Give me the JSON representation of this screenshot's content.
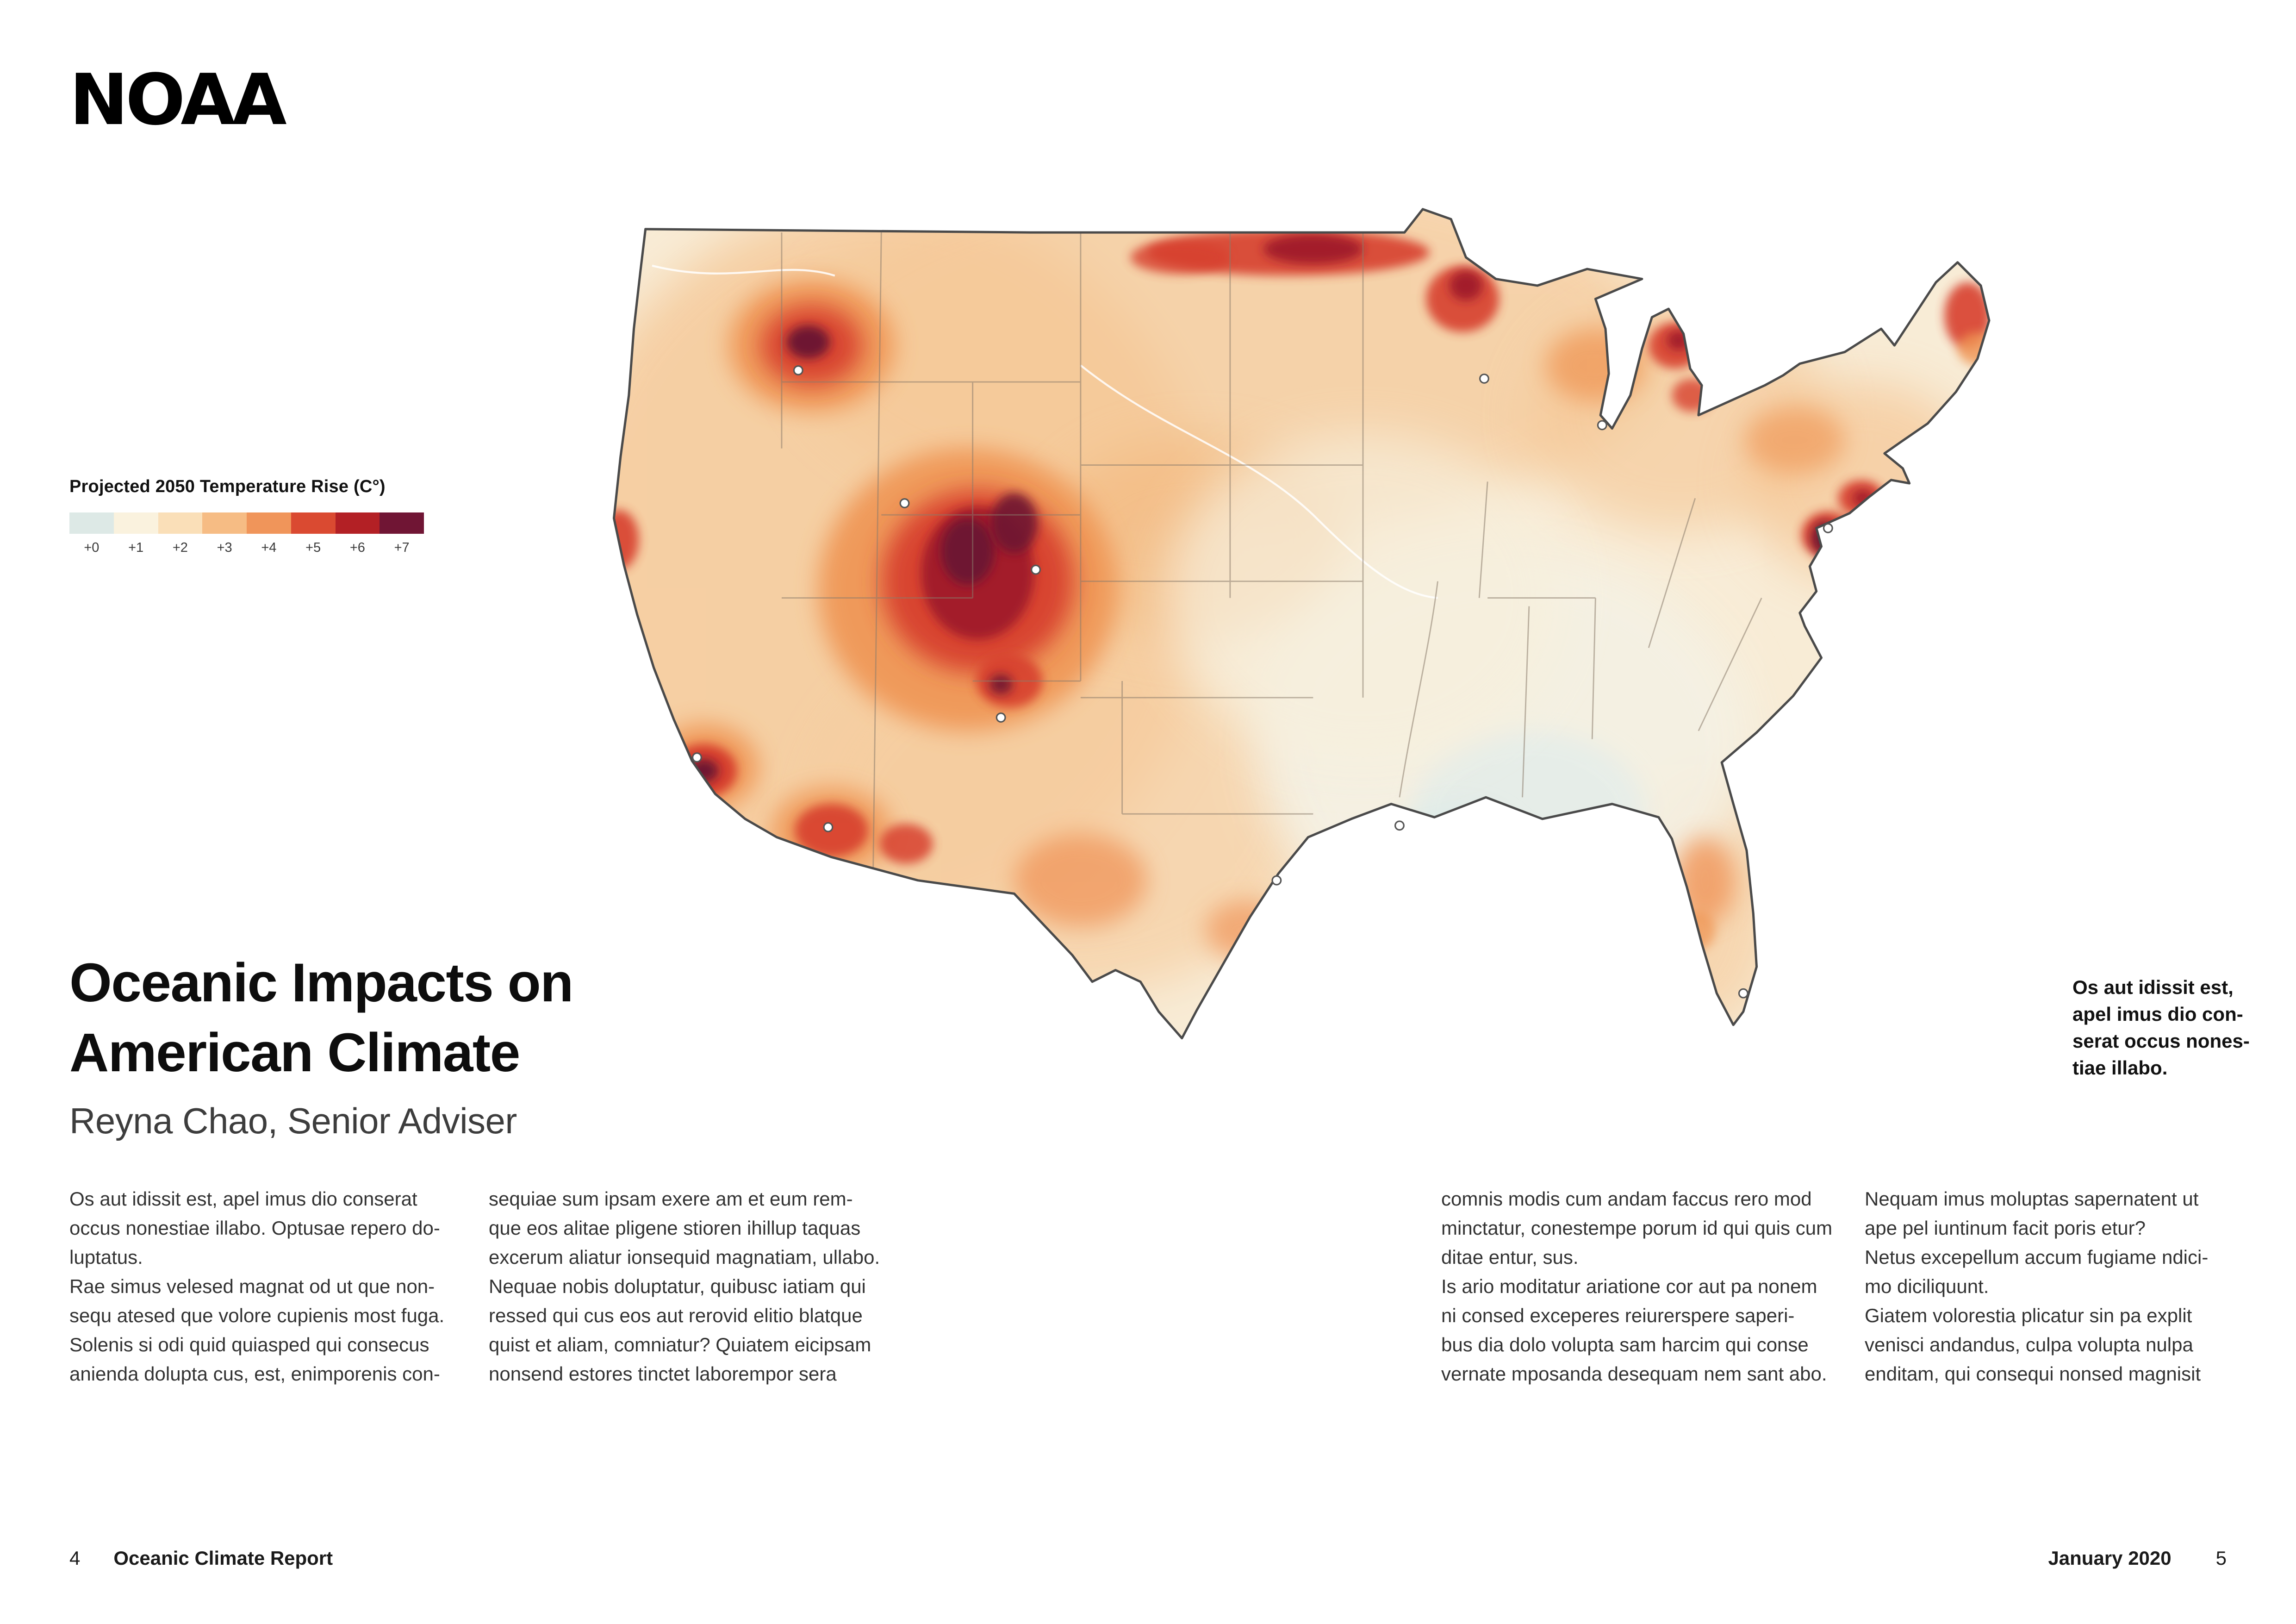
{
  "logo": {
    "text": "NOAA"
  },
  "legend": {
    "title": "Projected 2050 Temperature Rise (C°)",
    "ticks": [
      "+0",
      "+1",
      "+2",
      "+3",
      "+4",
      "+5",
      "+6",
      "+7"
    ],
    "colors": [
      "#dde9e6",
      "#faf2de",
      "#fadfb8",
      "#f6bc84",
      "#f0955a",
      "#da4a31",
      "#b32025",
      "#701534"
    ]
  },
  "headline": {
    "line1": "Oceanic Impacts on",
    "line2": "American Climate",
    "byline": "Reyna Chao, Senior Adviser"
  },
  "columns": [
    {
      "text": "Os aut idissit est, apel imus dio conserat\noccus nonestiae illabo. Optusae repero do-\nluptatus.\nRae simus velesed magnat od ut que non-\nsequ atesed que volore cupienis most fuga.\nSolenis si odi quid quiasped qui consecus\nanienda dolupta cus, est, enimporenis con-"
    },
    {
      "text": "sequiae sum ipsam exere am et eum rem-\nque eos alitae pligene stioren ihillup taquas\nexcerum aliatur ionsequid magnatiam, ullabo.\nNequae nobis doluptatur, quibusc iatiam qui\nressed qui cus eos aut rerovid elitio blatque\nquist et aliam, comniatur? Quiatem eicipsam\nnonsend estores tinctet laborempor sera"
    },
    {
      "text": "comnis modis cum andam faccus rero mod\nminctatur, conestempe porum id qui quis cum\nditae entur, sus.\nIs ario moditatur ariatione cor aut pa nonem\nni consed exceperes reiurerspere saperi-\nbus dia dolo volupta sam harcim qui conse\nvernate mposanda desequam nem sant abo."
    },
    {
      "text": "Nequam imus moluptas sapernatent ut\nape pel iuntinum facit poris etur?\nNetus excepellum accum fugiame ndici-\nmo diciliquunt.\nGiatem volorestia plicatur sin pa explit\nvenisci andandus, culpa volupta nulpa\nenditam, qui consequi nonsed magnisit"
    }
  ],
  "caption": {
    "text": "Os aut idissit est,\napel imus dio con-\nserat occus nones-\ntiae illabo."
  },
  "footer": {
    "page_left": "4",
    "publication": "Oceanic Climate Report",
    "issue": "January 2020",
    "page_right": "5"
  }
}
